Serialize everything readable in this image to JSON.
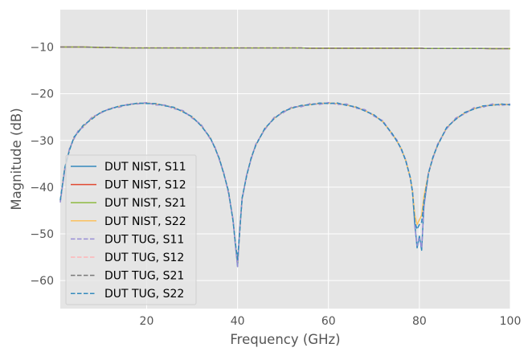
{
  "chart_data": {
    "type": "line",
    "title": "",
    "xlabel": "Frequency (GHz)",
    "ylabel": "Magnitude (dB)",
    "xlim": [
      1,
      100
    ],
    "ylim": [
      -66,
      -2
    ],
    "xticks": [
      20,
      40,
      60,
      80,
      100
    ],
    "yticks": [
      -60,
      -50,
      -40,
      -30,
      -20,
      -10
    ],
    "xtick_labels": [
      "20",
      "40",
      "60",
      "80",
      "100"
    ],
    "ytick_labels": [
      "−60",
      "−50",
      "−40",
      "−30",
      "−20",
      "−10"
    ],
    "grid": true,
    "legend_position": "lower-left",
    "x": [
      1,
      2,
      3,
      4,
      5,
      6,
      8,
      10,
      12,
      14,
      16,
      18,
      20,
      22,
      24,
      26,
      28,
      30,
      32,
      34,
      35,
      36,
      37,
      38,
      39,
      39.5,
      40,
      40.5,
      41,
      42,
      43,
      44,
      46,
      48,
      50,
      52,
      54,
      56,
      58,
      60,
      62,
      64,
      66,
      68,
      70,
      72,
      74,
      75,
      76,
      77,
      78,
      78.5,
      79,
      79.5,
      80,
      80.5,
      81,
      82,
      83,
      84,
      86,
      88,
      90,
      92,
      94,
      96,
      98,
      100
    ],
    "series": [
      {
        "name": "DUT NIST, S11",
        "color": "#348ABD",
        "dash": "solid",
        "values": [
          -43,
          -36,
          -32,
          -29.5,
          -28,
          -27,
          -25.2,
          -24,
          -23.2,
          -22.7,
          -22.3,
          -22.1,
          -22,
          -22.2,
          -22.5,
          -23,
          -23.8,
          -25,
          -26.8,
          -29.5,
          -31.5,
          -34,
          -37.2,
          -41,
          -47,
          -52,
          -57,
          -49,
          -42.5,
          -37.5,
          -33.8,
          -31,
          -27.5,
          -25.3,
          -23.9,
          -23,
          -22.6,
          -22.3,
          -22.1,
          -22,
          -22.1,
          -22.4,
          -22.9,
          -23.6,
          -24.6,
          -26,
          -28.6,
          -30,
          -31.8,
          -34.3,
          -38,
          -41,
          -48,
          -53,
          -50.5,
          -53.5,
          -44,
          -37,
          -33.6,
          -31,
          -27.3,
          -25.4,
          -24.1,
          -23.2,
          -22.7,
          -22.4,
          -22.3,
          -22.3
        ]
      },
      {
        "name": "DUT NIST, S12",
        "color": "#E24A33",
        "dash": "solid",
        "values": [
          -10,
          -10,
          -10,
          -10,
          -10,
          -10,
          -10.05,
          -10.1,
          -10.1,
          -10.15,
          -10.2,
          -10.2,
          -10.2,
          -10.2,
          -10.2,
          -10.2,
          -10.2,
          -10.2,
          -10.2,
          -10.2,
          -10.2,
          -10.2,
          -10.2,
          -10.2,
          -10.2,
          -10.2,
          -10.2,
          -10.2,
          -10.2,
          -10.2,
          -10.2,
          -10.2,
          -10.2,
          -10.2,
          -10.2,
          -10.2,
          -10.2,
          -10.25,
          -10.25,
          -10.25,
          -10.25,
          -10.25,
          -10.25,
          -10.25,
          -10.25,
          -10.25,
          -10.25,
          -10.25,
          -10.25,
          -10.25,
          -10.25,
          -10.25,
          -10.25,
          -10.25,
          -10.25,
          -10.25,
          -10.3,
          -10.3,
          -10.3,
          -10.3,
          -10.3,
          -10.3,
          -10.3,
          -10.3,
          -10.3,
          -10.35,
          -10.35,
          -10.35
        ]
      },
      {
        "name": "DUT NIST, S21",
        "color": "#8EBA42",
        "dash": "solid",
        "values": [
          -10,
          -10,
          -10,
          -10,
          -10,
          -10,
          -10.05,
          -10.1,
          -10.1,
          -10.15,
          -10.2,
          -10.2,
          -10.2,
          -10.2,
          -10.2,
          -10.2,
          -10.2,
          -10.2,
          -10.2,
          -10.2,
          -10.2,
          -10.2,
          -10.2,
          -10.2,
          -10.2,
          -10.2,
          -10.2,
          -10.2,
          -10.2,
          -10.2,
          -10.2,
          -10.2,
          -10.2,
          -10.2,
          -10.2,
          -10.2,
          -10.2,
          -10.25,
          -10.25,
          -10.25,
          -10.25,
          -10.25,
          -10.25,
          -10.25,
          -10.25,
          -10.25,
          -10.25,
          -10.25,
          -10.25,
          -10.25,
          -10.25,
          -10.25,
          -10.25,
          -10.25,
          -10.25,
          -10.25,
          -10.3,
          -10.3,
          -10.3,
          -10.3,
          -10.3,
          -10.3,
          -10.3,
          -10.3,
          -10.3,
          -10.35,
          -10.35,
          -10.35
        ]
      },
      {
        "name": "DUT NIST, S22",
        "color": "#FBC15E",
        "dash": "solid",
        "values": [
          -43,
          -36,
          -32,
          -29.5,
          -28,
          -27,
          -25.2,
          -24,
          -23.2,
          -22.7,
          -22.3,
          -22.1,
          -22,
          -22.2,
          -22.5,
          -23,
          -23.8,
          -25,
          -26.8,
          -29.5,
          -31.5,
          -34,
          -37.2,
          -41,
          -47,
          -52,
          -56,
          -49,
          -42.5,
          -37.5,
          -33.8,
          -31,
          -27.5,
          -25.3,
          -23.9,
          -23,
          -22.6,
          -22.3,
          -22.1,
          -22,
          -22.1,
          -22.4,
          -22.9,
          -23.6,
          -24.6,
          -26,
          -28.6,
          -30,
          -31.8,
          -34.3,
          -38,
          -41,
          -46,
          -48,
          -47,
          -46,
          -42,
          -37,
          -33.6,
          -31,
          -27.3,
          -25.4,
          -24.1,
          -23.2,
          -22.7,
          -22.4,
          -22.3,
          -22.3
        ]
      },
      {
        "name": "DUT TUG, S11",
        "color": "#988ED5",
        "dash": "dashed",
        "values": [
          -43.3,
          -36.2,
          -31.8,
          -29.7,
          -27.8,
          -27.2,
          -25,
          -24.1,
          -23.1,
          -22.9,
          -22.2,
          -22.2,
          -21.9,
          -22.4,
          -22.4,
          -23.2,
          -23.6,
          -25.2,
          -26.6,
          -29.7,
          -31.3,
          -34.2,
          -37,
          -41.3,
          -46.8,
          -52.3,
          -57,
          -48.7,
          -42.7,
          -37.3,
          -34,
          -30.8,
          -27.7,
          -25.1,
          -24.1,
          -22.8,
          -22.8,
          -22.1,
          -22.3,
          -21.9,
          -22.3,
          -22.2,
          -23.1,
          -23.4,
          -24.8,
          -25.8,
          -28.8,
          -29.8,
          -32,
          -34.1,
          -38.2,
          -40.8,
          -48.5,
          -52.5,
          -51,
          -53,
          -44.3,
          -36.8,
          -33.8,
          -30.8,
          -27.5,
          -25.2,
          -24.3,
          -23,
          -22.9,
          -22.2,
          -22.5,
          -22.2
        ]
      },
      {
        "name": "DUT TUG, S12",
        "color": "#FFB5B8",
        "dash": "dashed",
        "values": [
          -10,
          -10,
          -10,
          -10,
          -10,
          -10,
          -10.05,
          -10.1,
          -10.1,
          -10.15,
          -10.2,
          -10.2,
          -10.2,
          -10.2,
          -10.2,
          -10.2,
          -10.2,
          -10.2,
          -10.2,
          -10.2,
          -10.2,
          -10.2,
          -10.2,
          -10.2,
          -10.2,
          -10.2,
          -10.2,
          -10.2,
          -10.2,
          -10.2,
          -10.2,
          -10.2,
          -10.2,
          -10.2,
          -10.2,
          -10.2,
          -10.2,
          -10.25,
          -10.25,
          -10.25,
          -10.25,
          -10.25,
          -10.25,
          -10.25,
          -10.25,
          -10.25,
          -10.25,
          -10.25,
          -10.25,
          -10.25,
          -10.25,
          -10.25,
          -10.25,
          -10.25,
          -10.25,
          -10.25,
          -10.3,
          -10.3,
          -10.3,
          -10.3,
          -10.3,
          -10.3,
          -10.3,
          -10.3,
          -10.3,
          -10.35,
          -10.35,
          -10.35
        ]
      },
      {
        "name": "DUT TUG, S21",
        "color": "#777777",
        "dash": "dashed",
        "values": [
          -10,
          -10,
          -10,
          -10,
          -10,
          -10,
          -10.05,
          -10.1,
          -10.1,
          -10.15,
          -10.2,
          -10.2,
          -10.2,
          -10.2,
          -10.2,
          -10.2,
          -10.2,
          -10.2,
          -10.2,
          -10.2,
          -10.2,
          -10.2,
          -10.2,
          -10.2,
          -10.2,
          -10.2,
          -10.2,
          -10.2,
          -10.2,
          -10.2,
          -10.2,
          -10.2,
          -10.2,
          -10.2,
          -10.2,
          -10.2,
          -10.2,
          -10.25,
          -10.25,
          -10.25,
          -10.25,
          -10.25,
          -10.25,
          -10.25,
          -10.25,
          -10.25,
          -10.25,
          -10.25,
          -10.25,
          -10.25,
          -10.25,
          -10.25,
          -10.25,
          -10.25,
          -10.25,
          -10.25,
          -10.3,
          -10.3,
          -10.3,
          -10.3,
          -10.3,
          -10.3,
          -10.3,
          -10.3,
          -10.3,
          -10.35,
          -10.35,
          -10.35
        ]
      },
      {
        "name": "DUT TUG, S22",
        "color": "#348ABD",
        "dash": "dashed",
        "values": [
          -42.8,
          -35.8,
          -32.2,
          -29.3,
          -28.2,
          -26.8,
          -25.4,
          -23.9,
          -23.3,
          -22.6,
          -22.4,
          -22,
          -22.1,
          -22.1,
          -22.6,
          -22.9,
          -23.9,
          -24.9,
          -26.9,
          -29.4,
          -31.6,
          -33.9,
          -37.3,
          -40.8,
          -47.2,
          -51.8,
          -55.5,
          -49.2,
          -42.3,
          -37.6,
          -33.7,
          -31.1,
          -27.4,
          -25.4,
          -23.8,
          -23.1,
          -22.5,
          -22.4,
          -22,
          -22.1,
          -22,
          -22.5,
          -22.8,
          -23.7,
          -24.5,
          -26.1,
          -28.5,
          -30.1,
          -31.7,
          -34.4,
          -37.9,
          -41.2,
          -47.5,
          -49,
          -48,
          -47.5,
          -43,
          -37.1,
          -33.5,
          -31.1,
          -27.2,
          -25.5,
          -24,
          -23.3,
          -22.6,
          -22.5,
          -22.2,
          -22.4
        ]
      }
    ]
  }
}
